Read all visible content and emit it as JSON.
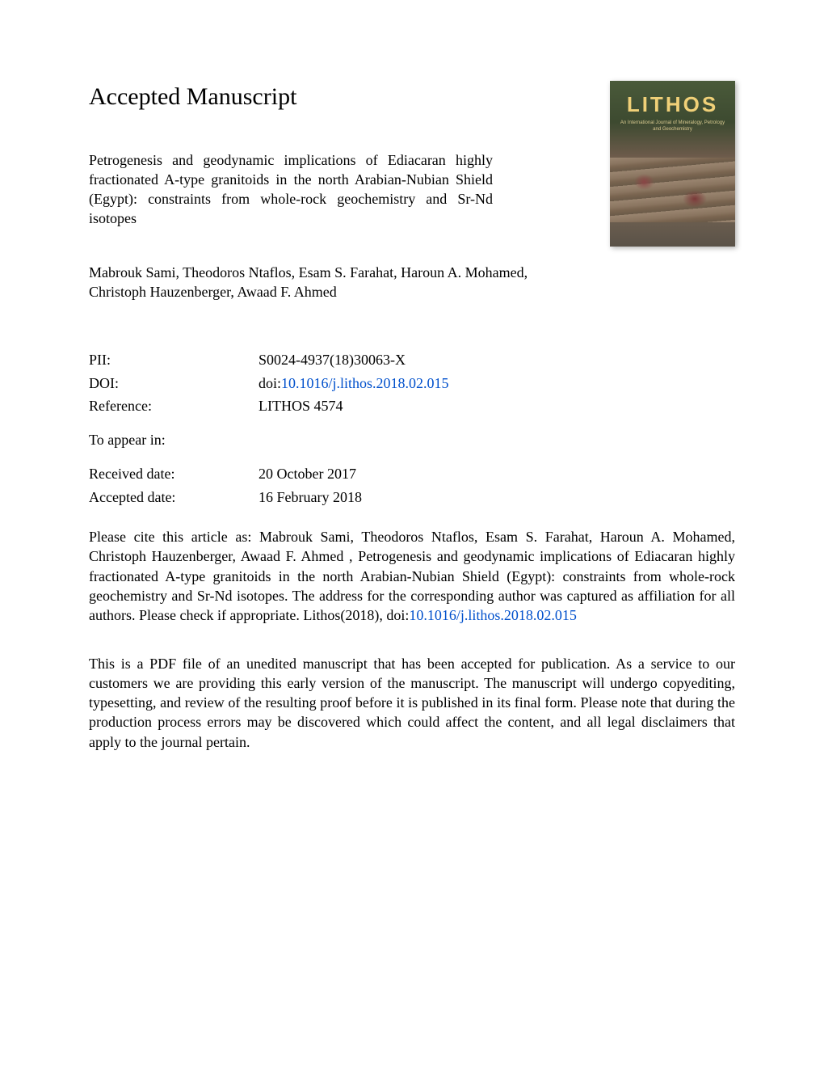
{
  "heading": "Accepted Manuscript",
  "article_title": "Petrogenesis and geodynamic implications of Ediacaran highly fractionated A-type granitoids in the north Arabian-Nubian Shield (Egypt): constraints from whole-rock geochemistry and Sr-Nd isotopes",
  "authors": "Mabrouk Sami, Theodoros Ntaflos, Esam S. Farahat, Haroun A. Mohamed, Christoph Hauzenberger, Awaad F. Ahmed",
  "cover": {
    "title": "LITHOS",
    "subtitle": "An International Journal of Mineralogy, Petrology and Geochemistry"
  },
  "metadata": {
    "pii_label": "PII:",
    "pii_value": "S0024-4937(18)30063-X",
    "doi_label": "DOI:",
    "doi_prefix": "doi:",
    "doi_link": "10.1016/j.lithos.2018.02.015",
    "reference_label": "Reference:",
    "reference_value": "LITHOS 4574",
    "appear_label": "To appear in:",
    "appear_value": "",
    "received_label": "Received date:",
    "received_value": "20 October 2017",
    "accepted_label": "Accepted date:",
    "accepted_value": "16 February 2018"
  },
  "citation": {
    "prefix": "Please cite this article as: Mabrouk Sami, Theodoros Ntaflos, Esam S. Farahat, Haroun A. Mohamed, Christoph Hauzenberger, Awaad F. Ahmed , Petrogenesis and geodynamic implications of Ediacaran highly fractionated A-type granitoids in the north Arabian-Nubian Shield (Egypt): constraints from whole-rock geochemistry and Sr-Nd isotopes. The address for the corresponding author was captured as affiliation for all authors. Please check if appropriate. Lithos(2018), doi:",
    "link": "10.1016/j.lithos.2018.02.015"
  },
  "disclaimer": "This is a PDF file of an unedited manuscript that has been accepted for publication. As a service to our customers we are providing this early version of the manuscript. The manuscript will undergo copyediting, typesetting, and review of the resulting proof before it is published in its final form. Please note that during the production process errors may be discovered which could affect the content, and all legal disclaimers that apply to the journal pertain.",
  "colors": {
    "text": "#000000",
    "link": "#0050cc",
    "background": "#ffffff"
  },
  "typography": {
    "heading_fontsize": 30,
    "body_fontsize": 18,
    "font_family": "Georgia, Times New Roman, serif"
  }
}
